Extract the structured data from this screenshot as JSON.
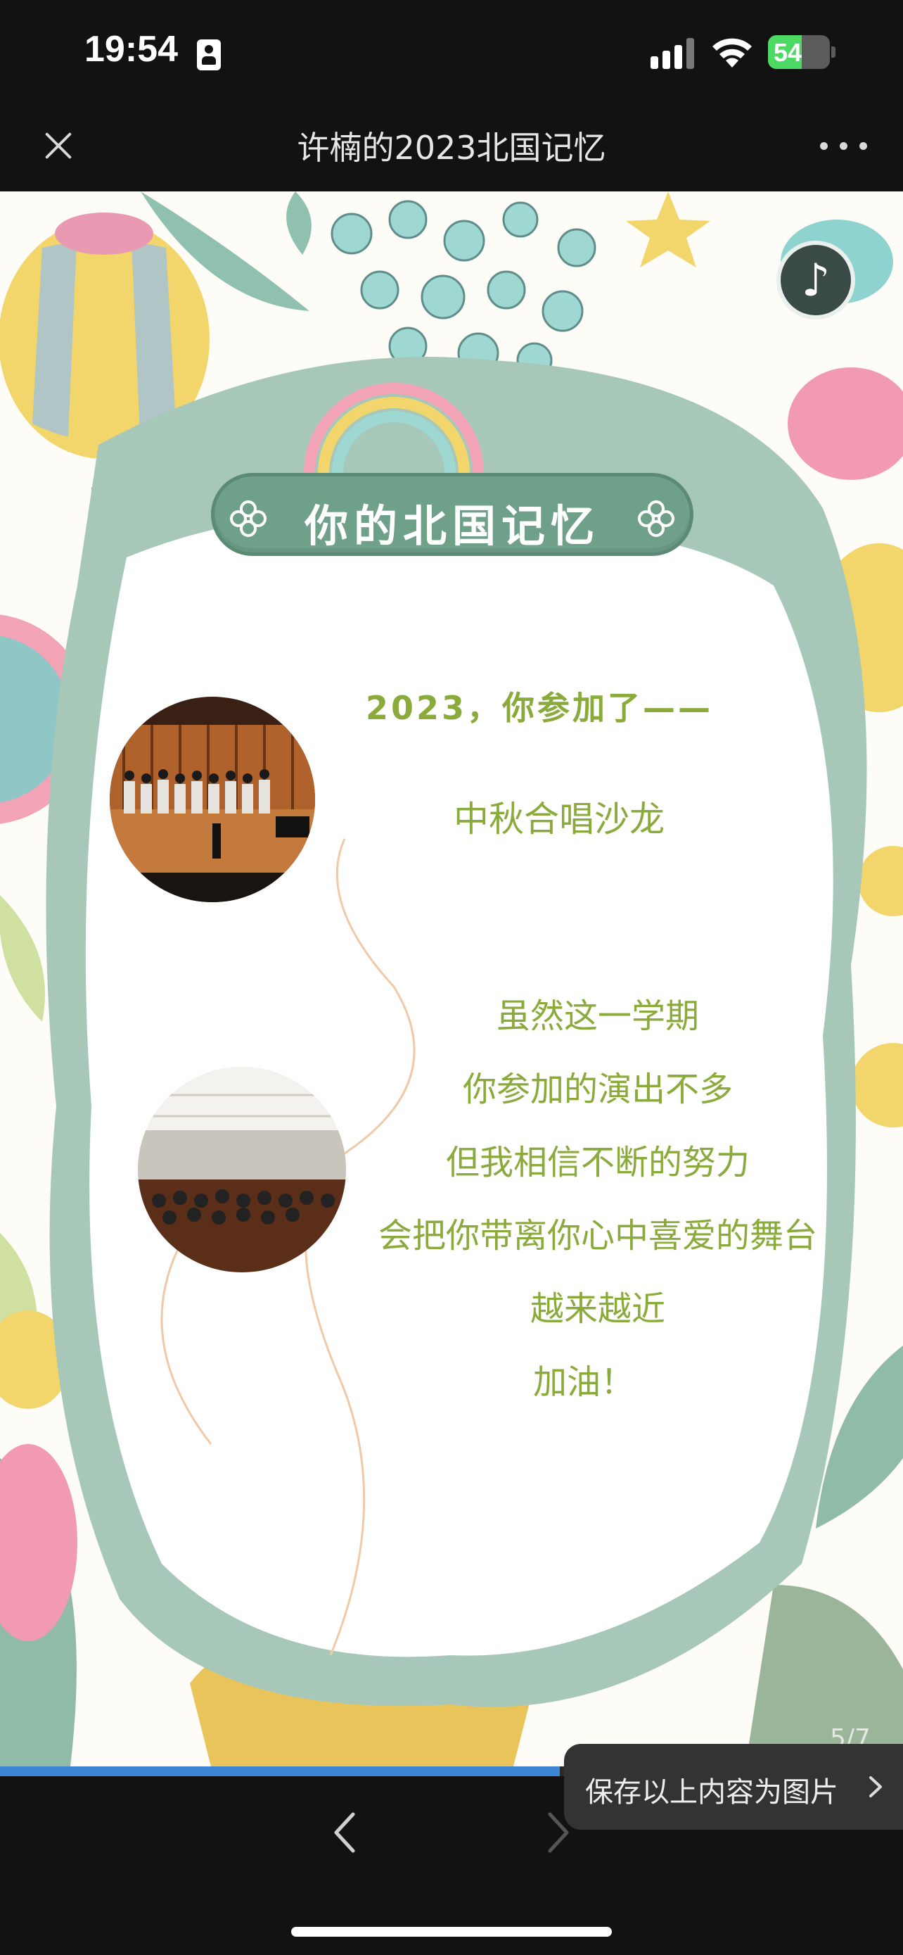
{
  "status_bar": {
    "time": "19:54",
    "battery_text": "54",
    "battery_level": 0.54,
    "colors": {
      "battery": "#4cd964",
      "background": "#121212"
    }
  },
  "nav": {
    "title": "许楠的2023北国记忆",
    "icons": {
      "close": "close-icon",
      "more": "more-icon"
    }
  },
  "content": {
    "banner_title": "你的北国记忆",
    "intro": "2023，你参加了——",
    "event": "中秋合唱沙龙",
    "message_lines": [
      "虽然这一学期",
      "你参加的演出不多",
      "但我相信不断的努力",
      "会把你带离你心中喜爱的舞台",
      "越来越近",
      "加油！"
    ],
    "page_indicator": "5/7",
    "colors": {
      "text": "#8aab3c",
      "banner": "#6fa089",
      "frame": "#a7c8b9"
    }
  },
  "progress": {
    "value": 0.62,
    "color": "#3c84d4"
  },
  "save_tip": {
    "label": "保存以上内容为图片"
  },
  "bottom_nav": {
    "prev_icon": "chevron-left-icon",
    "next_icon": "chevron-right-icon"
  }
}
